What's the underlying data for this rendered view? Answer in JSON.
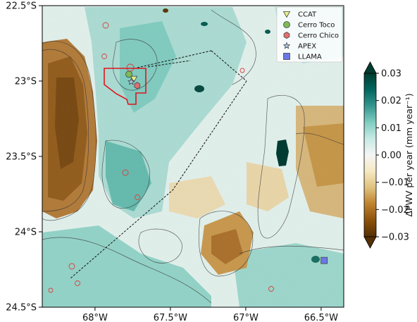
{
  "map": {
    "extent": {
      "lon_min": -68.35,
      "lon_max": -66.35,
      "lat_min": -24.5,
      "lat_max": -22.5
    },
    "x_ticks": [
      {
        "value": -68.0,
        "label": "68°W"
      },
      {
        "value": -67.5,
        "label": "67.5°W"
      },
      {
        "value": -67.0,
        "label": "67°W"
      },
      {
        "value": -66.5,
        "label": "66.5°W"
      }
    ],
    "y_ticks": [
      {
        "value": -22.5,
        "label": "22.5°S"
      },
      {
        "value": -23.0,
        "label": "23°S"
      },
      {
        "value": -23.5,
        "label": "23.5°S"
      },
      {
        "value": -24.0,
        "label": "24°S"
      },
      {
        "value": -24.5,
        "label": "24.5°S"
      }
    ],
    "sites": [
      {
        "name": "CCAT",
        "marker": "triangle-down",
        "color": "#e6ee8a",
        "lon": -67.742,
        "lat": -22.985
      },
      {
        "name": "Cerro Toco",
        "marker": "circle",
        "color": "#7dbb55",
        "lon": -67.775,
        "lat": -22.955
      },
      {
        "name": "Cerro Chico",
        "marker": "hexagon",
        "color": "#e06f6f",
        "lon": -67.72,
        "lat": -23.03
      },
      {
        "name": "APEX",
        "marker": "star",
        "color": "#a8c8e8",
        "lon": -67.76,
        "lat": -23.005
      },
      {
        "name": "LLAMA",
        "marker": "square",
        "color": "#6a78e6",
        "lon": -66.48,
        "lat": -24.19
      }
    ]
  },
  "colorbar": {
    "label": "ΔPWV per year (mm year⁻¹)",
    "min": -0.03,
    "max": 0.03,
    "ticks": [
      "0.03",
      "0.02",
      "0.01",
      "0.00",
      "−0.01",
      "−0.02",
      "−0.03"
    ],
    "colors": [
      "#543005",
      "#8c510a",
      "#bf812d",
      "#dfc27d",
      "#f6e8c3",
      "#f5f5f5",
      "#c7eae5",
      "#80cdc1",
      "#35978f",
      "#01665e",
      "#003c30"
    ]
  }
}
